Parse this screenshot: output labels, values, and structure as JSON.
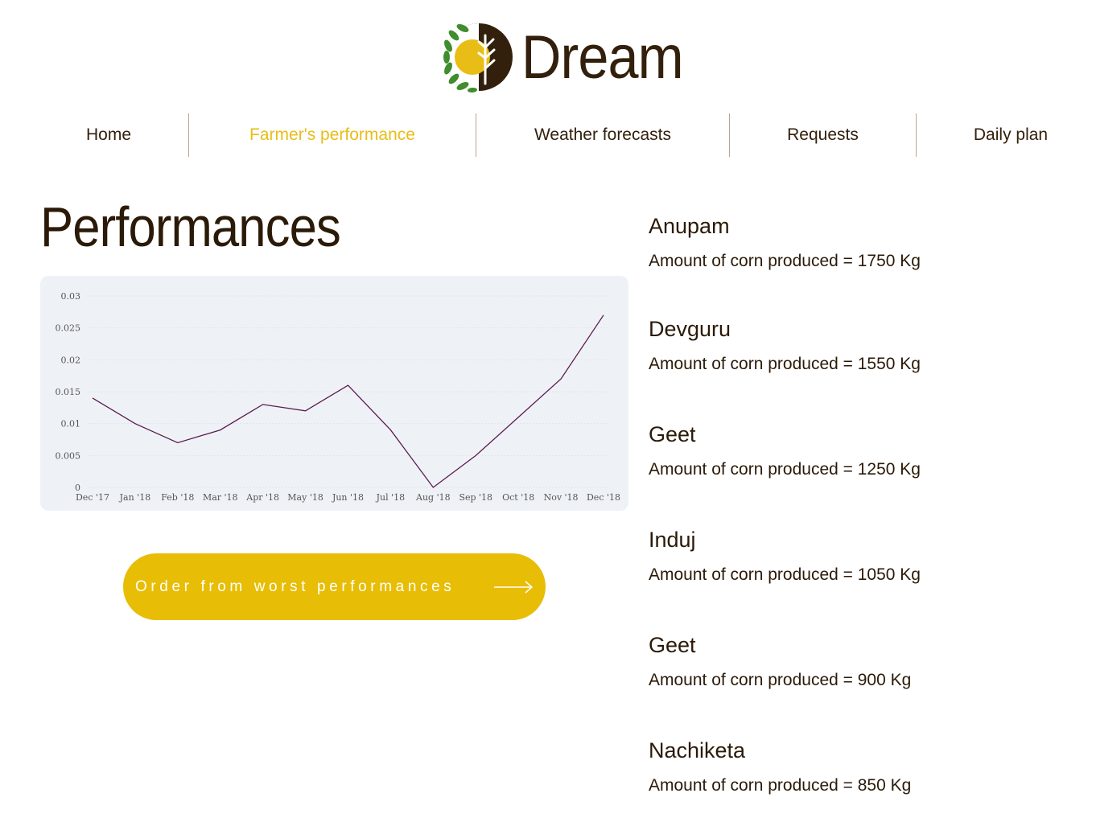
{
  "brand": {
    "name": "Dream",
    "colors": {
      "dark_brown": "#33200c",
      "gold": "#e8bd16",
      "green": "#3f8d2c"
    }
  },
  "nav": {
    "items": [
      {
        "label": "Home",
        "active": false
      },
      {
        "label": "Farmer's performance",
        "active": true
      },
      {
        "label": "Weather forecasts",
        "active": false
      },
      {
        "label": "Requests",
        "active": false
      },
      {
        "label": "Daily plan",
        "active": false
      }
    ]
  },
  "page": {
    "title": "Performances",
    "order_button": {
      "label": "Order from worst performances",
      "icon": "arrow-right-icon"
    }
  },
  "chart_data": {
    "type": "line",
    "x": [
      "Dec '17",
      "Jan '18",
      "Feb '18",
      "Mar '18",
      "Apr '18",
      "May '18",
      "Jun '18",
      "Jul '18",
      "Aug '18",
      "Sep '18",
      "Oct '18",
      "Nov '18",
      "Dec '18"
    ],
    "series": [
      {
        "values": [
          0.014,
          0.01,
          0.007,
          0.009,
          0.013,
          0.012,
          0.016,
          0.009,
          0.0,
          0.005,
          0.011,
          0.017,
          0.027
        ]
      }
    ],
    "yticks": [
      "0",
      "0.005",
      "0.01",
      "0.015",
      "0.02",
      "0.025",
      "0.03"
    ],
    "ylim": [
      0,
      0.03
    ],
    "grid": true,
    "line_color": "#5c1a4e"
  },
  "farmers": [
    {
      "name": "Anupam",
      "amount": "Amount of corn produced = 1750 Kg"
    },
    {
      "name": "Devguru",
      "amount": "Amount of corn produced = 1550 Kg"
    },
    {
      "name": "Geet",
      "amount": "Amount of corn produced = 1250 Kg"
    },
    {
      "name": "Induj",
      "amount": "Amount of corn produced = 1050 Kg"
    },
    {
      "name": "Geet",
      "amount": "Amount of corn produced = 900 Kg"
    },
    {
      "name": "Nachiketa",
      "amount": "Amount of corn produced = 850 Kg"
    }
  ]
}
